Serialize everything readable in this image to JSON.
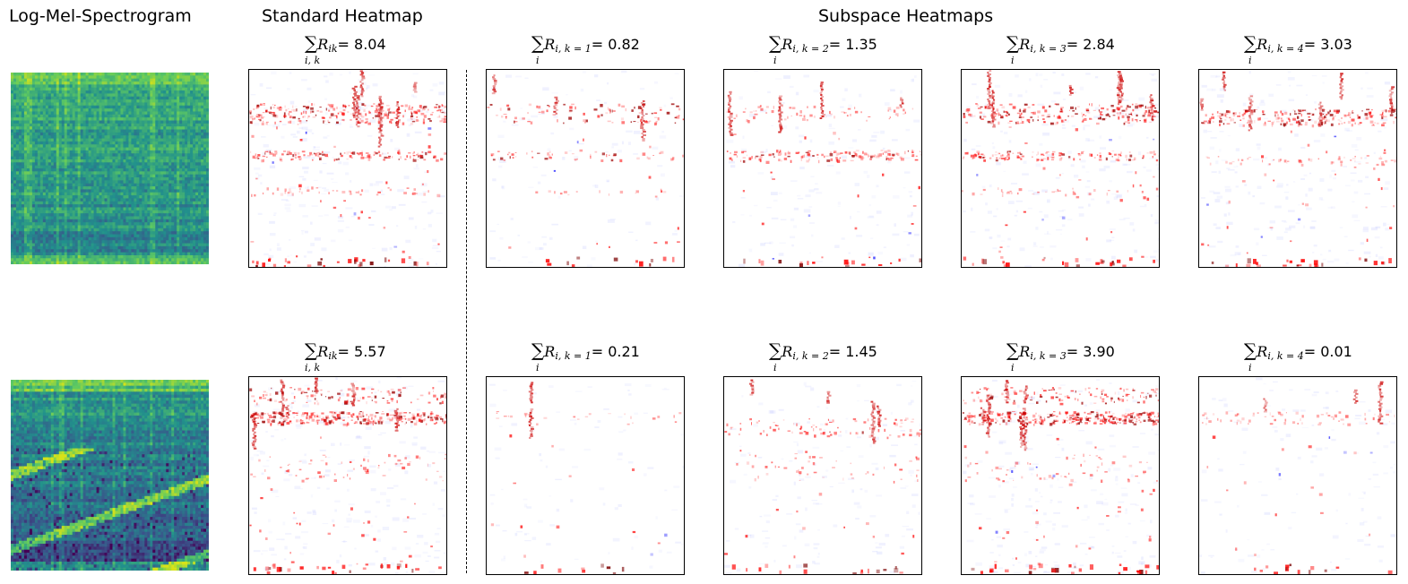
{
  "headers": {
    "spectrogram": "Log-Mel-Spectrogram",
    "standard": "Standard Heatmap",
    "subspace": "Subspace Heatmaps"
  },
  "rows": [
    {
      "panels": [
        {
          "kind": "standard",
          "sum_under": "i, k",
          "r_sub": "ik",
          "value": "= 8.04"
        },
        {
          "kind": "subspace",
          "sum_under": "i",
          "r_sub": "i, k = 1",
          "value": "= 0.82"
        },
        {
          "kind": "subspace",
          "sum_under": "i",
          "r_sub": "i, k = 2",
          "value": "= 1.35"
        },
        {
          "kind": "subspace",
          "sum_under": "i",
          "r_sub": "i, k = 3",
          "value": "= 2.84"
        },
        {
          "kind": "subspace",
          "sum_under": "i",
          "r_sub": "i, k = 4",
          "value": "= 3.03"
        }
      ]
    },
    {
      "panels": [
        {
          "kind": "standard",
          "sum_under": "i, k",
          "r_sub": "ik",
          "value": "= 5.57"
        },
        {
          "kind": "subspace",
          "sum_under": "i",
          "r_sub": "i, k = 1",
          "value": "= 0.21"
        },
        {
          "kind": "subspace",
          "sum_under": "i",
          "r_sub": "i, k = 2",
          "value": "= 1.45"
        },
        {
          "kind": "subspace",
          "sum_under": "i",
          "r_sub": "i, k = 3",
          "value": "= 3.90"
        },
        {
          "kind": "subspace",
          "sum_under": "i",
          "r_sub": "i, k = 4",
          "value": "= 0.01"
        }
      ]
    }
  ],
  "colors": {
    "positive": "#ff0000",
    "strong_positive": "#7a0000",
    "negative": "#0000ff",
    "spectrogram_low": "#30216b",
    "spectrogram_mid": "#21918c",
    "spectrogram_high": "#d7e219"
  }
}
